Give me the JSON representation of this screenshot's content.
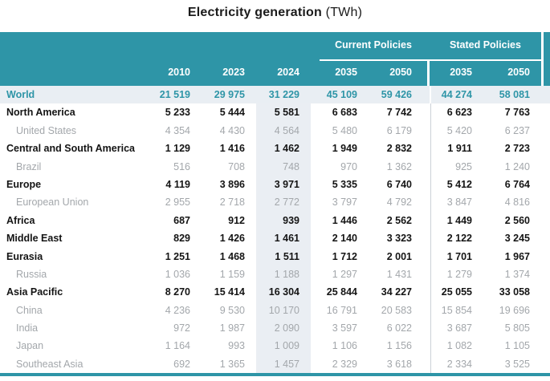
{
  "title": {
    "main": "Electricity generation",
    "unit": "(TWh)"
  },
  "header": {
    "groups": [
      {
        "label": "Current Policies"
      },
      {
        "label": "Stated Policies"
      }
    ],
    "years": [
      "2010",
      "2023",
      "2024",
      "2035",
      "2050",
      "2035",
      "2050"
    ]
  },
  "colors": {
    "teal": "#2e95a7",
    "highlight_row_bg": "#e9eef3",
    "highlight_col_bg": "#eaeef3",
    "subrow_text": "#a3a7ab",
    "group_separator": "#ccd2d8"
  },
  "chart_data": {
    "type": "table",
    "title": "Electricity generation",
    "unit": "TWh",
    "column_groups": [
      {
        "label": "",
        "columns": [
          "2010",
          "2023",
          "2024"
        ]
      },
      {
        "label": "Current Policies",
        "columns": [
          "2035",
          "2050"
        ]
      },
      {
        "label": "Stated Policies",
        "columns": [
          "2035",
          "2050"
        ]
      }
    ],
    "rows": [
      {
        "label": "World",
        "level": "world",
        "values": [
          21519,
          29975,
          31229,
          45109,
          59426,
          44274,
          58081
        ]
      },
      {
        "label": "North America",
        "level": "region",
        "values": [
          5233,
          5444,
          5581,
          6683,
          7742,
          6623,
          7763
        ]
      },
      {
        "label": "United States",
        "level": "country",
        "values": [
          4354,
          4430,
          4564,
          5480,
          6179,
          5420,
          6237
        ]
      },
      {
        "label": "Central and South America",
        "level": "region",
        "values": [
          1129,
          1416,
          1462,
          1949,
          2832,
          1911,
          2723
        ]
      },
      {
        "label": "Brazil",
        "level": "country",
        "values": [
          516,
          708,
          748,
          970,
          1362,
          925,
          1240
        ]
      },
      {
        "label": "Europe",
        "level": "region",
        "values": [
          4119,
          3896,
          3971,
          5335,
          6740,
          5412,
          6764
        ]
      },
      {
        "label": "European Union",
        "level": "country",
        "values": [
          2955,
          2718,
          2772,
          3797,
          4792,
          3847,
          4816
        ]
      },
      {
        "label": "Africa",
        "level": "region",
        "values": [
          687,
          912,
          939,
          1446,
          2562,
          1449,
          2560
        ]
      },
      {
        "label": "Middle East",
        "level": "region",
        "values": [
          829,
          1426,
          1461,
          2140,
          3323,
          2122,
          3245
        ]
      },
      {
        "label": "Eurasia",
        "level": "region",
        "values": [
          1251,
          1468,
          1511,
          1712,
          2001,
          1701,
          1967
        ]
      },
      {
        "label": "Russia",
        "level": "country",
        "values": [
          1036,
          1159,
          1188,
          1297,
          1431,
          1279,
          1374
        ]
      },
      {
        "label": "Asia Pacific",
        "level": "region",
        "values": [
          8270,
          15414,
          16304,
          25844,
          34227,
          25055,
          33058
        ]
      },
      {
        "label": "China",
        "level": "country",
        "values": [
          4236,
          9530,
          10170,
          16791,
          20583,
          15854,
          19696
        ]
      },
      {
        "label": "India",
        "level": "country",
        "values": [
          972,
          1987,
          2090,
          3597,
          6022,
          3687,
          5805
        ]
      },
      {
        "label": "Japan",
        "level": "country",
        "values": [
          1164,
          993,
          1009,
          1106,
          1156,
          1082,
          1105
        ]
      },
      {
        "label": "Southeast Asia",
        "level": "country",
        "values": [
          692,
          1365,
          1457,
          2329,
          3618,
          2334,
          3525
        ]
      }
    ]
  }
}
